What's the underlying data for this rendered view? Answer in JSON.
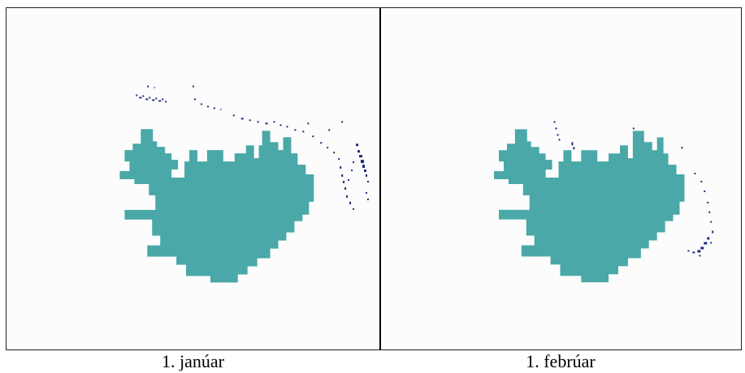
{
  "panels": [
    {
      "label": "1. janúar"
    },
    {
      "label": "1. febrúar"
    }
  ],
  "colors": {
    "land": "#4aa8a8",
    "drift_points": "#1a2a7a",
    "background": "#fcfcfc"
  }
}
